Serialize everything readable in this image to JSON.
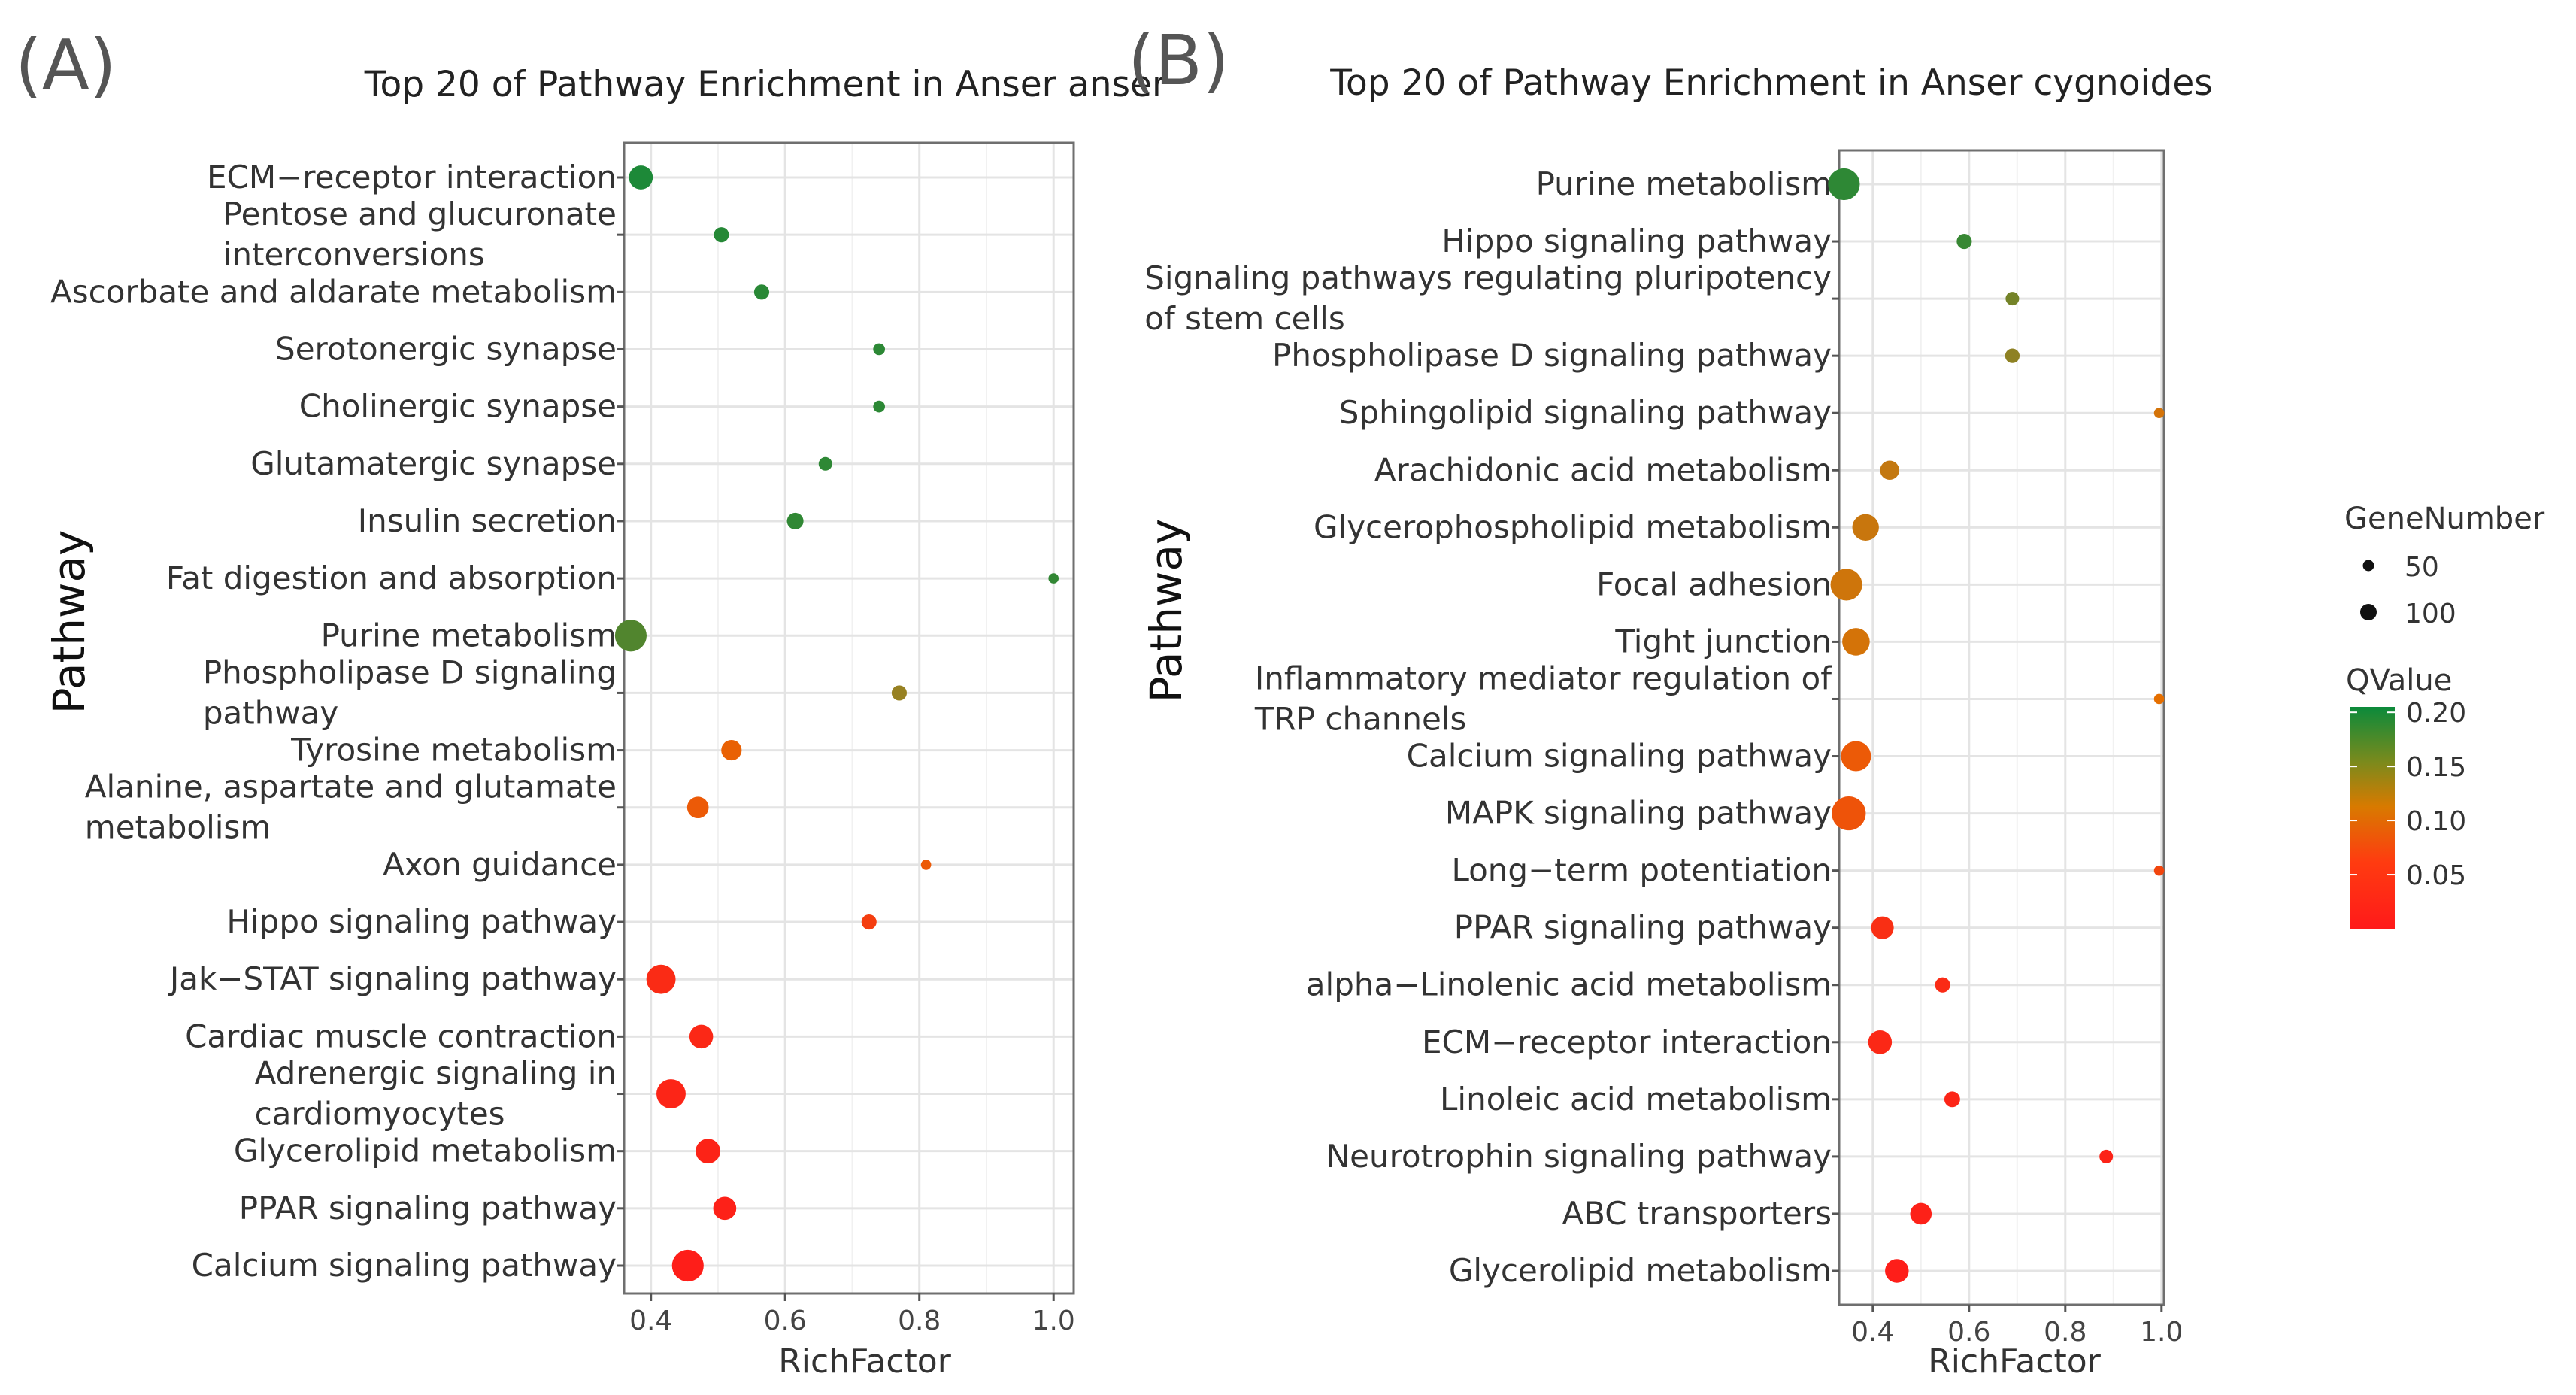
{
  "chart_data": [
    {
      "type": "scatter",
      "panel_label": "(A)",
      "title": "Top 20 of Pathway Enrichment in Anser anser",
      "xlabel": "RichFactor",
      "ylabel": "Pathway",
      "xlim": [
        0.36,
        1.03
      ],
      "xticks": [
        "0.4",
        "0.6",
        "0.8",
        "1.0"
      ],
      "xtick_values": [
        0.4,
        0.6,
        0.8,
        1.0
      ],
      "grid": true,
      "points": [
        {
          "pathway": [
            "ECM−receptor interaction"
          ],
          "richfactor": 0.385,
          "qvalue": 0.195,
          "genes": 66
        },
        {
          "pathway": [
            "Pentose and glucuronate",
            "interconversions"
          ],
          "richfactor": 0.505,
          "qvalue": 0.19,
          "genes": 30
        },
        {
          "pathway": [
            "Ascorbate and aldarate metabolism"
          ],
          "richfactor": 0.565,
          "qvalue": 0.188,
          "genes": 30
        },
        {
          "pathway": [
            "Serotonergic synapse"
          ],
          "richfactor": 0.74,
          "qvalue": 0.186,
          "genes": 20
        },
        {
          "pathway": [
            "Cholinergic synapse"
          ],
          "richfactor": 0.74,
          "qvalue": 0.186,
          "genes": 20
        },
        {
          "pathway": [
            "Glutamatergic synapse"
          ],
          "richfactor": 0.66,
          "qvalue": 0.185,
          "genes": 25
        },
        {
          "pathway": [
            "Insulin secretion"
          ],
          "richfactor": 0.615,
          "qvalue": 0.184,
          "genes": 35
        },
        {
          "pathway": [
            "Fat digestion and absorption"
          ],
          "richfactor": 1.0,
          "qvalue": 0.183,
          "genes": 16
        },
        {
          "pathway": [
            "Purine metabolism"
          ],
          "richfactor": 0.37,
          "qvalue": 0.165,
          "genes": 110
        },
        {
          "pathway": [
            "Phospholipase D signaling",
            "pathway"
          ],
          "richfactor": 0.77,
          "qvalue": 0.125,
          "genes": 30
        },
        {
          "pathway": [
            "Tyrosine metabolism"
          ],
          "richfactor": 0.52,
          "qvalue": 0.05,
          "genes": 50
        },
        {
          "pathway": [
            "Alanine, aspartate and glutamate",
            "metabolism"
          ],
          "richfactor": 0.47,
          "qvalue": 0.045,
          "genes": 55
        },
        {
          "pathway": [
            "Axon guidance"
          ],
          "richfactor": 0.81,
          "qvalue": 0.045,
          "genes": 16
        },
        {
          "pathway": [
            "Hippo signaling pathway"
          ],
          "richfactor": 0.725,
          "qvalue": 0.025,
          "genes": 30
        },
        {
          "pathway": [
            "Jak−STAT signaling pathway"
          ],
          "richfactor": 0.415,
          "qvalue": 0.012,
          "genes": 95
        },
        {
          "pathway": [
            "Cardiac muscle contraction"
          ],
          "richfactor": 0.475,
          "qvalue": 0.01,
          "genes": 65
        },
        {
          "pathway": [
            "Adrenergic signaling in",
            "cardiomyocytes"
          ],
          "richfactor": 0.43,
          "qvalue": 0.008,
          "genes": 95
        },
        {
          "pathway": [
            "Glycerolipid metabolism"
          ],
          "richfactor": 0.485,
          "qvalue": 0.006,
          "genes": 70
        },
        {
          "pathway": [
            "PPAR signaling pathway"
          ],
          "richfactor": 0.51,
          "qvalue": 0.005,
          "genes": 62
        },
        {
          "pathway": [
            "Calcium signaling pathway"
          ],
          "richfactor": 0.455,
          "qvalue": 0.003,
          "genes": 110
        }
      ]
    },
    {
      "type": "scatter",
      "panel_label": "(B)",
      "title": "Top 20 of Pathway Enrichment in Anser cygnoides",
      "xlabel": "RichFactor",
      "ylabel": "Pathway",
      "xlim": [
        0.33,
        1.005
      ],
      "xticks": [
        "0.4",
        "0.6",
        "0.8",
        "1.0"
      ],
      "xtick_values": [
        0.4,
        0.6,
        0.8,
        1.0
      ],
      "grid": true,
      "points": [
        {
          "pathway": [
            "Purine metabolism"
          ],
          "richfactor": 0.34,
          "qvalue": 0.185,
          "genes": 110
        },
        {
          "pathway": [
            "Hippo signaling pathway"
          ],
          "richfactor": 0.59,
          "qvalue": 0.18,
          "genes": 30
        },
        {
          "pathway": [
            "Signaling pathways regulating pluripotency",
            "of stem cells"
          ],
          "richfactor": 0.69,
          "qvalue": 0.145,
          "genes": 25
        },
        {
          "pathway": [
            "Phospholipase D signaling pathway"
          ],
          "richfactor": 0.69,
          "qvalue": 0.13,
          "genes": 28
        },
        {
          "pathway": [
            "Sphingolipid signaling pathway"
          ],
          "richfactor": 0.995,
          "qvalue": 0.075,
          "genes": 16
        },
        {
          "pathway": [
            "Arachidonic acid metabolism"
          ],
          "richfactor": 0.435,
          "qvalue": 0.09,
          "genes": 45
        },
        {
          "pathway": [
            "Glycerophospholipid metabolism"
          ],
          "richfactor": 0.385,
          "qvalue": 0.085,
          "genes": 80
        },
        {
          "pathway": [
            "Focal adhesion"
          ],
          "richfactor": 0.345,
          "qvalue": 0.08,
          "genes": 110
        },
        {
          "pathway": [
            "Tight junction"
          ],
          "richfactor": 0.365,
          "qvalue": 0.075,
          "genes": 85
        },
        {
          "pathway": [
            "Inflammatory mediator regulation of",
            "TRP channels"
          ],
          "richfactor": 0.995,
          "qvalue": 0.06,
          "genes": 16
        },
        {
          "pathway": [
            "Calcium signaling pathway"
          ],
          "richfactor": 0.365,
          "qvalue": 0.045,
          "genes": 100
        },
        {
          "pathway": [
            "MAPK signaling pathway"
          ],
          "richfactor": 0.35,
          "qvalue": 0.04,
          "genes": 125
        },
        {
          "pathway": [
            "Long−term potentiation"
          ],
          "richfactor": 0.995,
          "qvalue": 0.03,
          "genes": 16
        },
        {
          "pathway": [
            "PPAR signaling pathway"
          ],
          "richfactor": 0.42,
          "qvalue": 0.015,
          "genes": 60
        },
        {
          "pathway": [
            "alpha−Linolenic acid metabolism"
          ],
          "richfactor": 0.545,
          "qvalue": 0.012,
          "genes": 30
        },
        {
          "pathway": [
            "ECM−receptor interaction"
          ],
          "richfactor": 0.415,
          "qvalue": 0.01,
          "genes": 65
        },
        {
          "pathway": [
            "Linoleic acid metabolism"
          ],
          "richfactor": 0.565,
          "qvalue": 0.008,
          "genes": 32
        },
        {
          "pathway": [
            "Neurotrophin signaling pathway"
          ],
          "richfactor": 0.885,
          "qvalue": 0.006,
          "genes": 25
        },
        {
          "pathway": [
            "ABC transporters"
          ],
          "richfactor": 0.5,
          "qvalue": 0.005,
          "genes": 55
        },
        {
          "pathway": [
            "Glycerolipid metabolism"
          ],
          "richfactor": 0.45,
          "qvalue": 0.003,
          "genes": 65
        }
      ]
    }
  ],
  "legend": {
    "size_title": "GeneNumber",
    "size_entries": [
      {
        "label": "50",
        "value": 50
      },
      {
        "label": "100",
        "value": 100
      }
    ],
    "color_title": "QValue",
    "color_ticks": [
      {
        "label": "0.20",
        "value": 0.2
      },
      {
        "label": "0.15",
        "value": 0.15
      },
      {
        "label": "0.10",
        "value": 0.1
      },
      {
        "label": "0.05",
        "value": 0.05
      }
    ],
    "color_range": [
      0.0,
      0.205
    ],
    "colors": {
      "low": "#ff1a1a",
      "mid": "#e56f00",
      "midq": "#a08020",
      "high": "#0b8a3b"
    }
  }
}
